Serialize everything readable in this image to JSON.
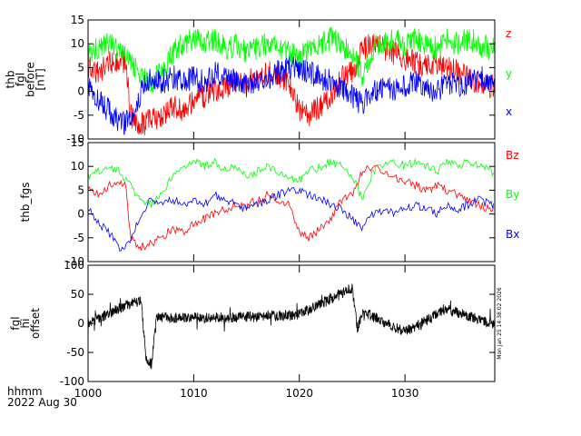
{
  "chart_data": [
    {
      "type": "line",
      "ylabel_lines": [
        "thb",
        "fgl",
        "before",
        "[nT]"
      ],
      "ylim": [
        -10,
        15
      ],
      "yticks": [
        -10,
        -5,
        0,
        5,
        10,
        15
      ],
      "xlim": [
        1000,
        1038.5
      ],
      "series": [
        {
          "name": "z",
          "color": "#ff0000",
          "x": [
            1000,
            1001,
            1002,
            1003,
            1003.6,
            1004,
            1005,
            1006,
            1007,
            1008,
            1009,
            1010,
            1011,
            1012,
            1013,
            1014,
            1015,
            1016,
            1017,
            1018,
            1019,
            1020,
            1021,
            1022,
            1023,
            1024,
            1025,
            1026,
            1027,
            1028,
            1029,
            1030,
            1031,
            1032,
            1033,
            1034,
            1035,
            1036,
            1037,
            1038
          ],
          "values": [
            5,
            4,
            6,
            7,
            6,
            -5,
            -7,
            -6,
            -5,
            -3,
            -4,
            -2,
            -1,
            0,
            1,
            2,
            2,
            3,
            4,
            3,
            2,
            -4,
            -5,
            -3,
            -1,
            3,
            4,
            9,
            10,
            9,
            8,
            7,
            6,
            5,
            6,
            5,
            4,
            3,
            2,
            1
          ]
        },
        {
          "name": "y",
          "color": "#00ff00",
          "x": [
            1000,
            1001,
            1002,
            1003,
            1004,
            1005,
            1006,
            1007,
            1008,
            1009,
            1010,
            1011,
            1012,
            1013,
            1014,
            1015,
            1016,
            1017,
            1018,
            1019,
            1020,
            1021,
            1022,
            1023,
            1024,
            1025,
            1026,
            1027,
            1028,
            1029,
            1030,
            1031,
            1032,
            1033,
            1034,
            1035,
            1036,
            1037,
            1038
          ],
          "values": [
            8,
            9,
            10,
            9,
            6,
            3,
            2,
            4,
            8,
            10,
            11,
            10,
            11,
            9,
            10,
            8,
            9,
            10,
            9,
            8,
            7,
            9,
            10,
            11,
            10,
            8,
            3,
            9,
            10,
            11,
            10,
            11,
            10,
            9,
            11,
            10,
            11,
            10,
            9
          ]
        },
        {
          "name": "x",
          "color": "#0000ff",
          "x": [
            1000,
            1001,
            1002,
            1003,
            1004,
            1005,
            1006,
            1007,
            1008,
            1009,
            1010,
            1011,
            1012,
            1013,
            1014,
            1015,
            1016,
            1017,
            1018,
            1019,
            1020,
            1021,
            1022,
            1023,
            1024,
            1025,
            1026,
            1027,
            1028,
            1029,
            1030,
            1031,
            1032,
            1033,
            1034,
            1035,
            1036,
            1037,
            1038
          ],
          "values": [
            1,
            -2,
            -4,
            -7,
            -6,
            0,
            3,
            2,
            3,
            2,
            3,
            2,
            4,
            3,
            2,
            1,
            2,
            3,
            4,
            5,
            5,
            4,
            3,
            2,
            1,
            -1,
            -3,
            0,
            1,
            0,
            1,
            2,
            1,
            0,
            2,
            1,
            2,
            3,
            2
          ]
        }
      ],
      "legend": [
        "z",
        "y",
        "x"
      ]
    },
    {
      "type": "line",
      "ylabel_lines": [
        "thb_fgs"
      ],
      "ylim": [
        -10,
        15
      ],
      "yticks": [
        -10,
        -5,
        0,
        5,
        10,
        15
      ],
      "xlim": [
        1000,
        1038.5
      ],
      "series": [
        {
          "name": "Bz",
          "color": "#ff0000",
          "x": [
            1000,
            1001,
            1002,
            1003,
            1003.6,
            1004,
            1005,
            1006,
            1007,
            1008,
            1009,
            1010,
            1011,
            1012,
            1013,
            1014,
            1015,
            1016,
            1017,
            1018,
            1019,
            1020,
            1021,
            1022,
            1023,
            1024,
            1025,
            1026,
            1027,
            1028,
            1029,
            1030,
            1031,
            1032,
            1033,
            1034,
            1035,
            1036,
            1037,
            1038
          ],
          "values": [
            5,
            4,
            6,
            7,
            6,
            -5,
            -7,
            -6,
            -5,
            -3,
            -4,
            -2,
            -1,
            0,
            1,
            2,
            2,
            3,
            4,
            3,
            2,
            -4,
            -5,
            -3,
            -1,
            3,
            4,
            9,
            10,
            9,
            8,
            7,
            6,
            5,
            6,
            5,
            4,
            3,
            2,
            1
          ]
        },
        {
          "name": "By",
          "color": "#00ff00",
          "x": [
            1000,
            1001,
            1002,
            1003,
            1004,
            1005,
            1006,
            1007,
            1008,
            1009,
            1010,
            1011,
            1012,
            1013,
            1014,
            1015,
            1016,
            1017,
            1018,
            1019,
            1020,
            1021,
            1022,
            1023,
            1024,
            1025,
            1026,
            1027,
            1028,
            1029,
            1030,
            1031,
            1032,
            1033,
            1034,
            1035,
            1036,
            1037,
            1038
          ],
          "values": [
            8,
            9,
            10,
            9,
            6,
            3,
            2,
            4,
            8,
            10,
            11,
            10,
            11,
            9,
            10,
            8,
            9,
            10,
            9,
            8,
            7,
            9,
            10,
            11,
            10,
            8,
            3,
            9,
            10,
            11,
            10,
            11,
            10,
            9,
            11,
            10,
            11,
            10,
            9
          ]
        },
        {
          "name": "Bx",
          "color": "#0000ff",
          "x": [
            1000,
            1001,
            1002,
            1003,
            1004,
            1005,
            1006,
            1007,
            1008,
            1009,
            1010,
            1011,
            1012,
            1013,
            1014,
            1015,
            1016,
            1017,
            1018,
            1019,
            1020,
            1021,
            1022,
            1023,
            1024,
            1025,
            1026,
            1027,
            1028,
            1029,
            1030,
            1031,
            1032,
            1033,
            1034,
            1035,
            1036,
            1037,
            1038
          ],
          "values": [
            1,
            -2,
            -4,
            -7,
            -6,
            0,
            3,
            2,
            3,
            2,
            3,
            2,
            4,
            3,
            2,
            1,
            2,
            3,
            4,
            5,
            5,
            4,
            3,
            2,
            1,
            -1,
            -3,
            0,
            1,
            0,
            1,
            2,
            1,
            0,
            2,
            1,
            2,
            3,
            2
          ]
        }
      ],
      "legend": [
        "Bz",
        "By",
        "Bx"
      ]
    },
    {
      "type": "line",
      "ylabel_lines": [
        "fgl",
        "hi",
        "offset"
      ],
      "ylim": [
        -100,
        100
      ],
      "yticks": [
        -100,
        -50,
        0,
        50,
        100
      ],
      "xlim": [
        1000,
        1038.5
      ],
      "series": [
        {
          "name": "offset",
          "color": "#000000",
          "x": [
            1000,
            1003.5,
            1005,
            1005.5,
            1006,
            1006.5,
            1013,
            1020,
            1025,
            1025.5,
            1026,
            1030,
            1034,
            1038
          ],
          "values": [
            0,
            30,
            40,
            -60,
            -70,
            10,
            10,
            15,
            60,
            -10,
            20,
            -15,
            25,
            0
          ]
        }
      ],
      "legend": []
    }
  ],
  "x_axis": {
    "tick_labels": [
      "1000",
      "1010",
      "1020",
      "1030"
    ],
    "tick_values": [
      1000,
      1010,
      1020,
      1030
    ]
  },
  "footer": {
    "units_label": "hhmm",
    "date_label": "2022 Aug 30"
  },
  "timestamp": "Mon Jan 25 14:38:02 2026"
}
